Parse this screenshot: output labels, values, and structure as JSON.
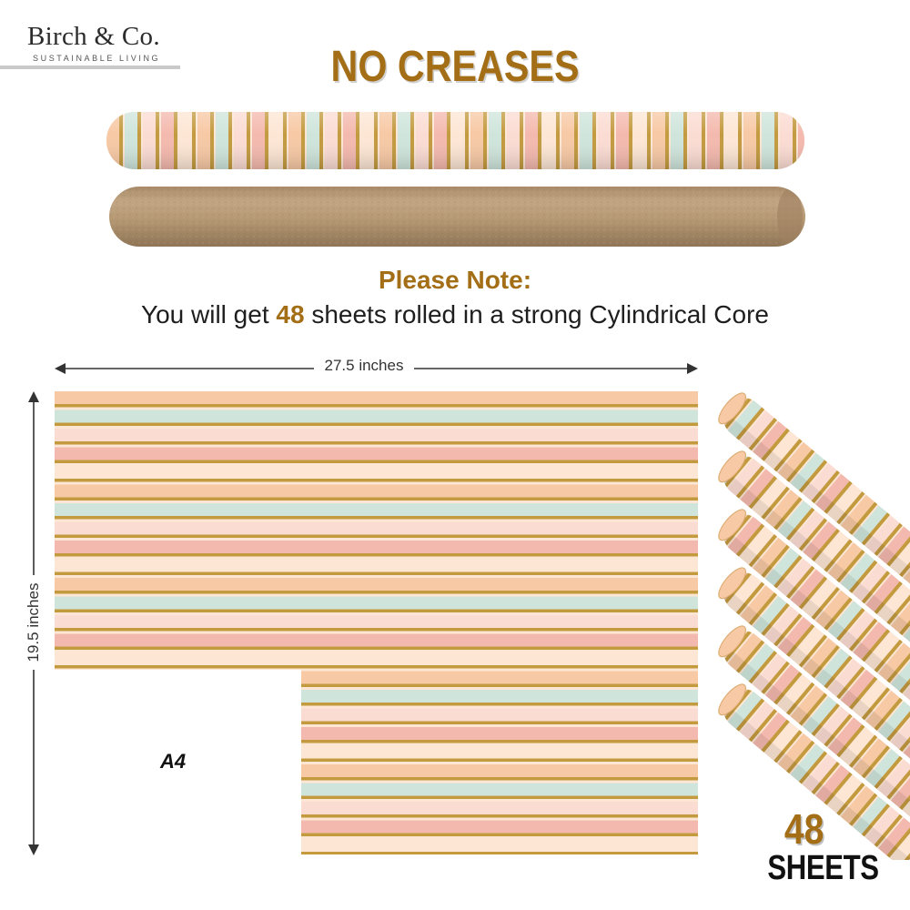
{
  "brand": {
    "name": "Birch & Co.",
    "tagline": "SUSTAINABLE LIVING"
  },
  "headline": "NO CREASES",
  "note": {
    "title": "Please Note:",
    "prefix": "You will get ",
    "count": "48",
    "suffix": " sheets rolled in a strong Cylindrical Core"
  },
  "dimensions": {
    "width_label": "27.5 inches",
    "height_label": "19.5 inches",
    "a4_label": "A4"
  },
  "badge": {
    "count": "48",
    "word": "SHEETS"
  },
  "colors": {
    "accent_gold": "#a36e16",
    "stripe_gold": "#c39a3e",
    "stripe_peach": "#f7c9a5",
    "stripe_mint": "#cfe5dc",
    "stripe_pink": "#f4b9ae",
    "stripe_blush": "#fbdcd3",
    "stripe_cream": "#fde6d4",
    "kraft": "#b79a78"
  }
}
